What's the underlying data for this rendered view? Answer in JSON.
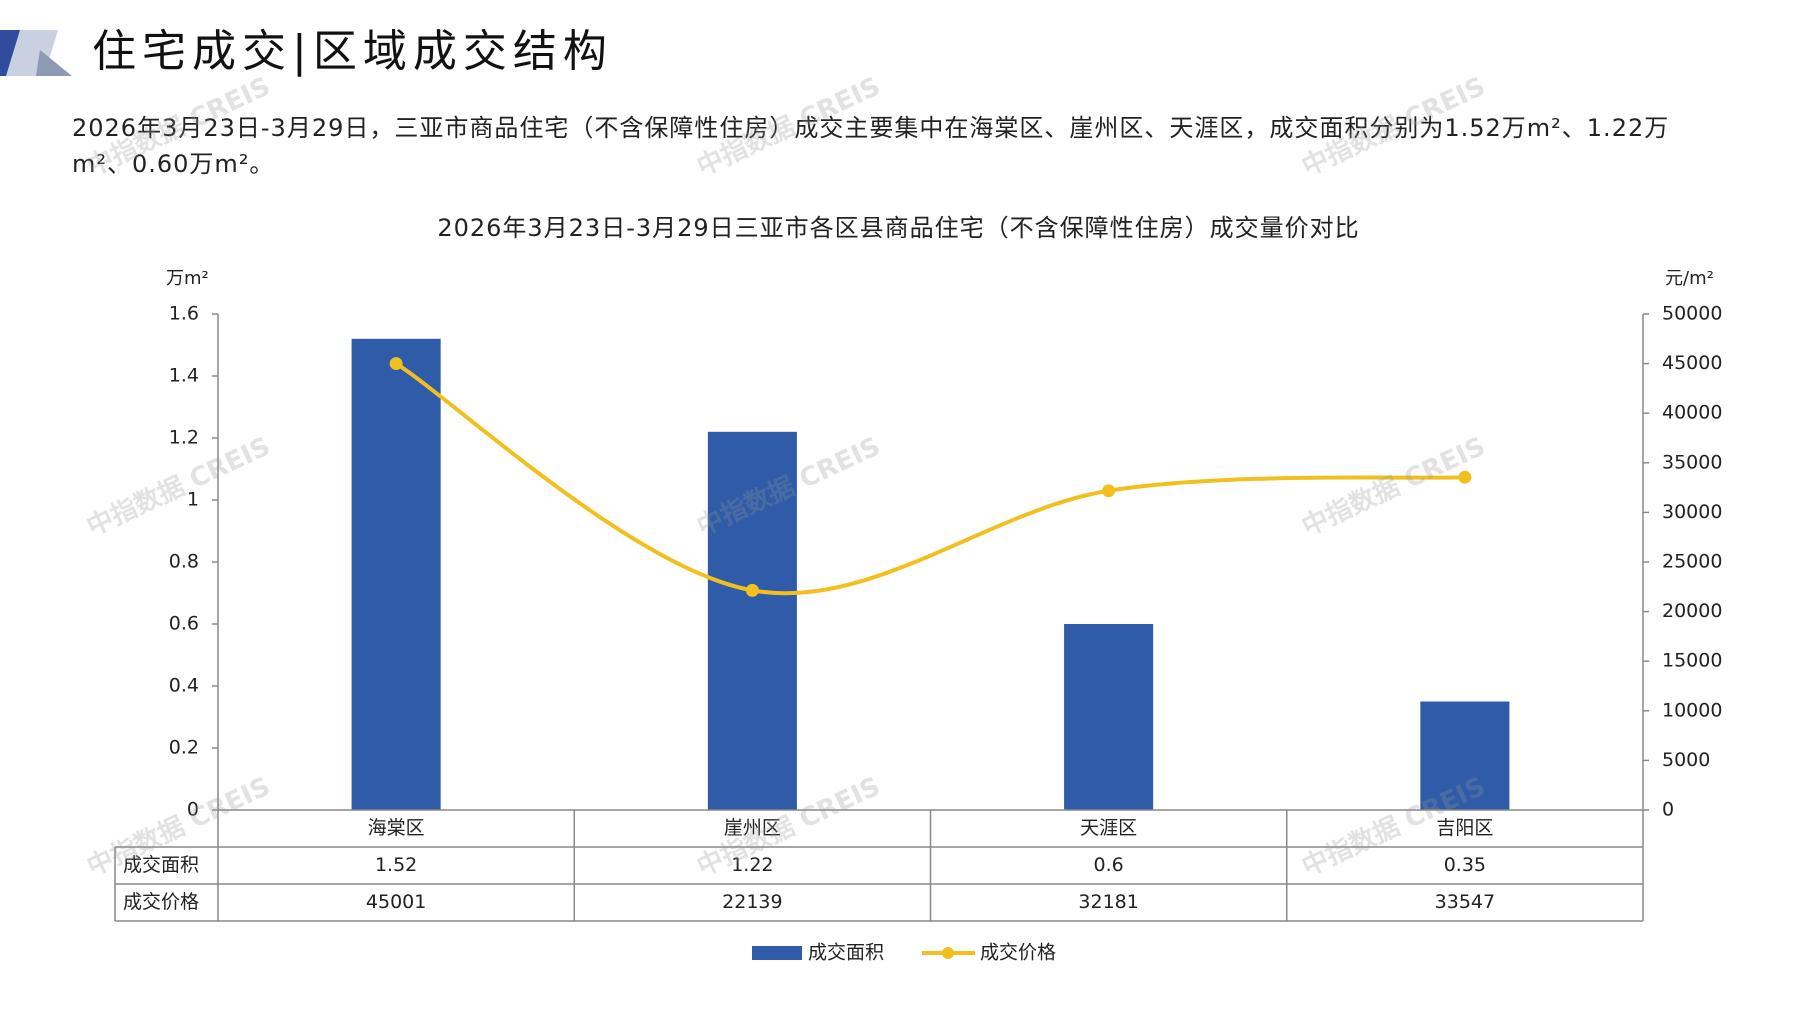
{
  "header": {
    "title": "住宅成交|区域成交结构"
  },
  "summary": {
    "text": "2026年3月23日-3月29日，三亚市商品住宅（不含保障性住房）成交主要集中在海棠区、崖州区、天涯区，成交面积分别为1.52万m²、1.22万m²、0.60万m²。"
  },
  "watermark": {
    "text": "中指数据 CREIS"
  },
  "chart_data": {
    "type": "bar",
    "title": "2026年3月23日-3月29日三亚市各区县商品住宅（不含保障性住房）成交量价对比",
    "categories": [
      "海棠区",
      "崖州区",
      "天涯区",
      "吉阳区"
    ],
    "y_left": {
      "unit": "万m²",
      "ylim": [
        0,
        1.6
      ],
      "ticks": [
        "0",
        "0.2",
        "0.4",
        "0.6",
        "0.8",
        "1",
        "1.2",
        "1.4",
        "1.6"
      ]
    },
    "y_right": {
      "unit": "元/m²",
      "ylim": [
        0,
        50000
      ],
      "ticks": [
        "0",
        "5000",
        "10000",
        "15000",
        "20000",
        "25000",
        "30000",
        "35000",
        "40000",
        "45000",
        "50000"
      ]
    },
    "series": [
      {
        "name": "成交面积",
        "type": "bar",
        "axis": "left",
        "color": "#2f5ba8",
        "values": [
          1.52,
          1.22,
          0.6,
          0.35
        ],
        "labels": [
          "1.52",
          "1.22",
          "0.6",
          "0.35"
        ]
      },
      {
        "name": "成交价格",
        "type": "line",
        "axis": "right",
        "color": "#f2c01e",
        "smooth": true,
        "values": [
          45001,
          22139,
          32181,
          33547
        ],
        "labels": [
          "45001",
          "22139",
          "32181",
          "33547"
        ]
      }
    ],
    "data_table": true,
    "legend_position": "bottom"
  },
  "colors": {
    "bar": "#2f5ba8",
    "line": "#f2c01e",
    "title_accent_dark": "#2f4d9c",
    "title_accent_light": "#b9c2d6"
  }
}
